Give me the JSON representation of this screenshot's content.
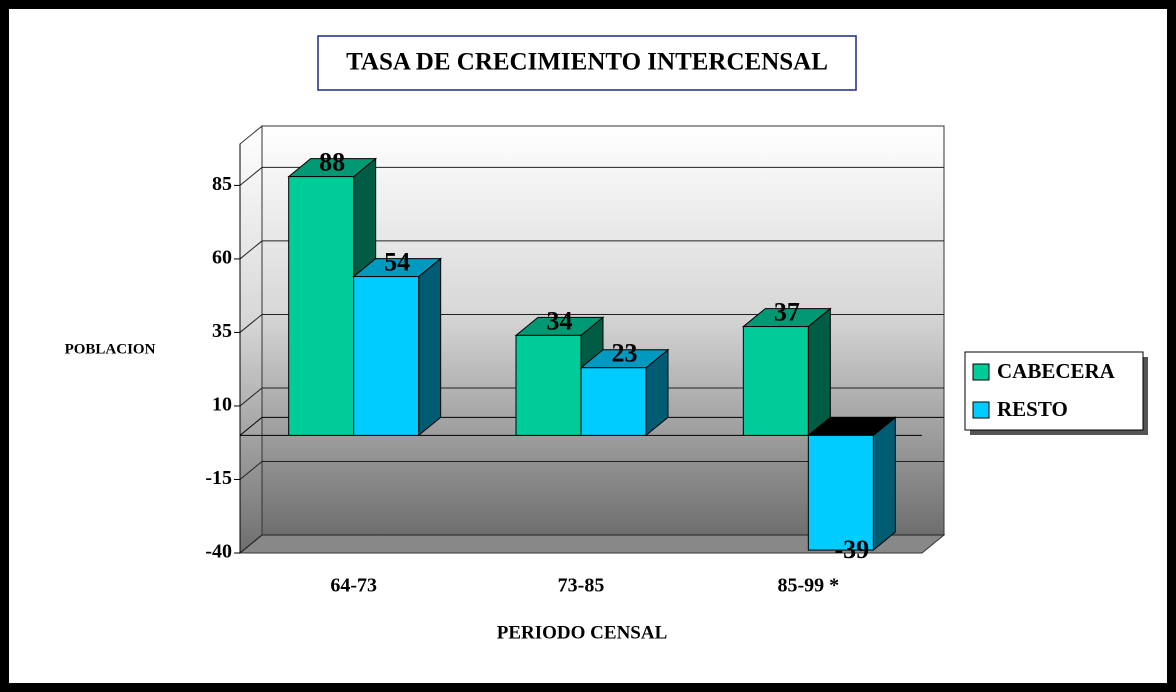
{
  "chart_data": {
    "type": "bar3d",
    "title": "TASA DE CRECIMIENTO INTERCENSAL",
    "y_label": "POBLACION",
    "x_label": "PERIODO CENSAL",
    "categories": [
      "64-73",
      "73-85",
      "85-99 *"
    ],
    "series": [
      {
        "name": "CABECERA",
        "color": "#00cc99",
        "values": [
          88,
          34,
          37
        ]
      },
      {
        "name": "RESTO",
        "color": "#00ccff",
        "values": [
          54,
          23,
          -39
        ]
      }
    ],
    "ylim": [
      -40,
      95
    ],
    "yticks": [
      -40,
      -15,
      10,
      35,
      60,
      85
    ],
    "grid": true,
    "legend": "right"
  }
}
